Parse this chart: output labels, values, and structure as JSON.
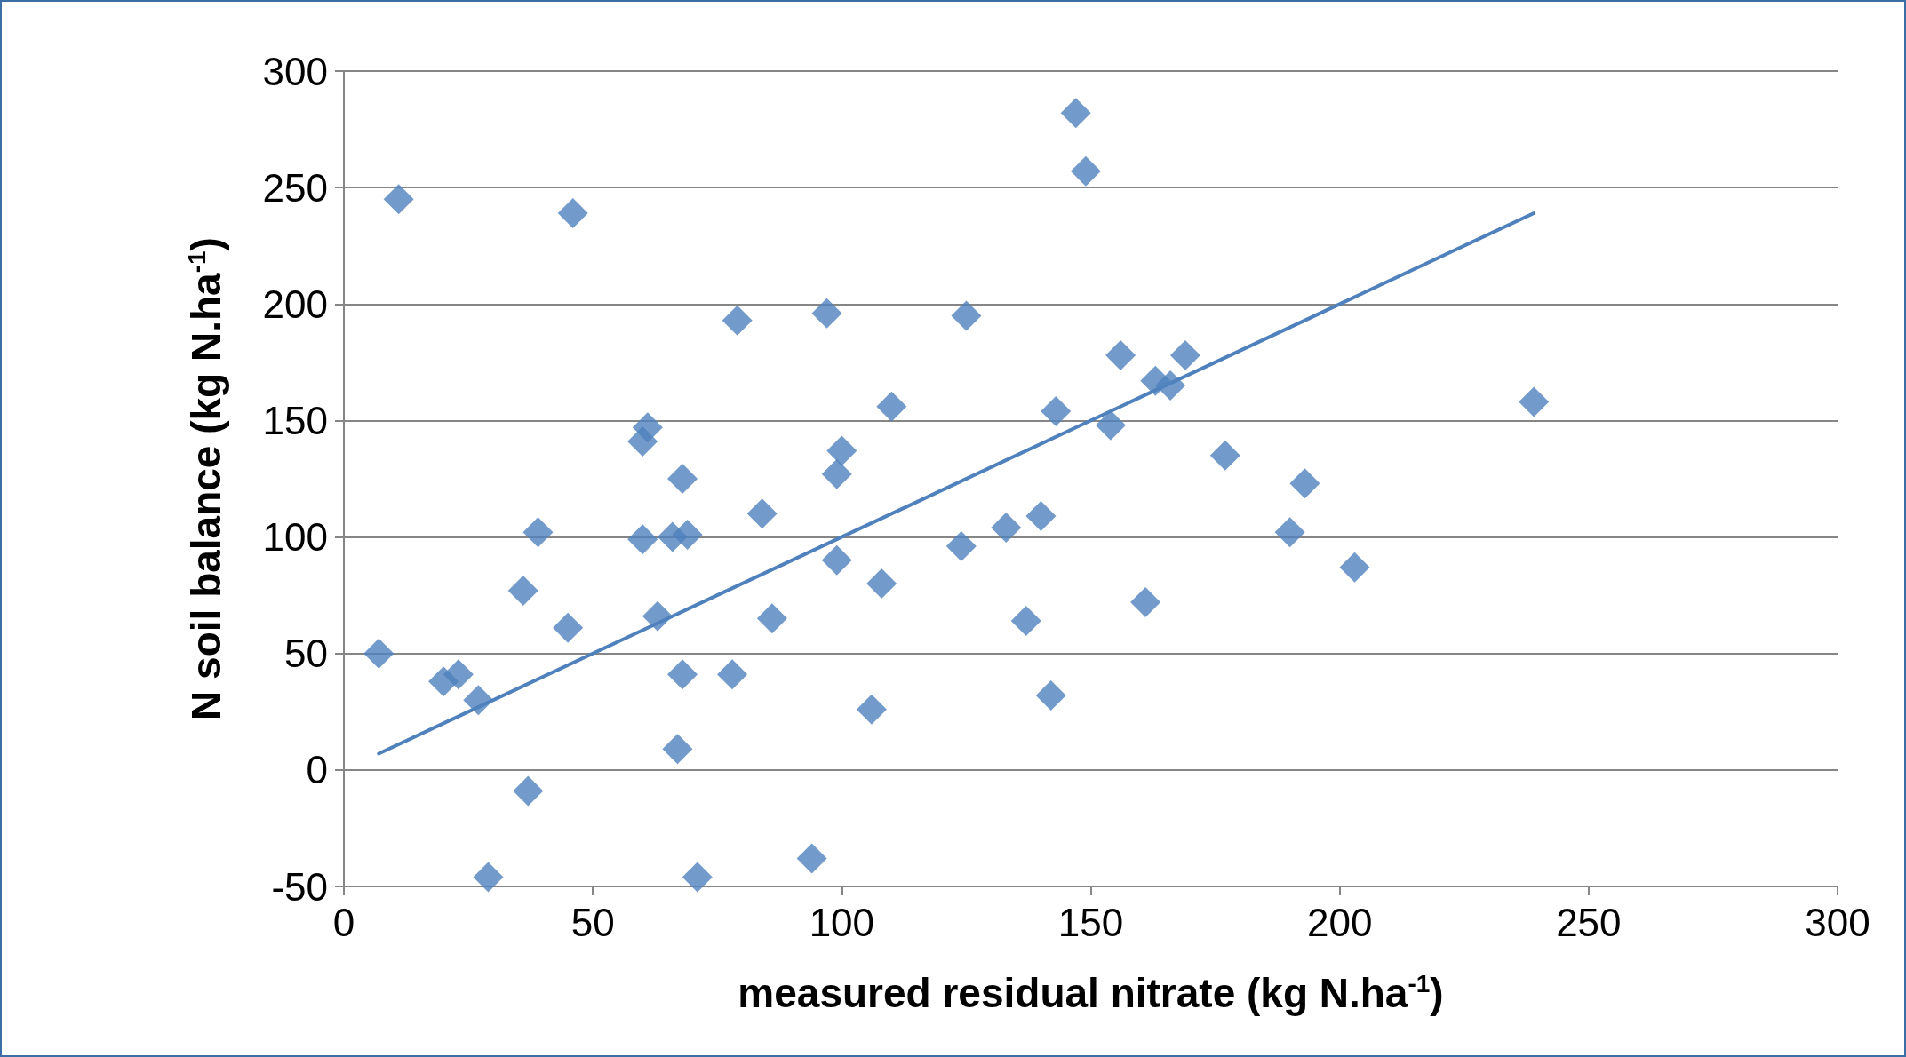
{
  "chart_data": {
    "type": "scatter",
    "xlabel": "measured residual nitrate (kg N.ha$^{-1}$)",
    "ylabel": "N soil balance (kg N.ha$^{-1}$)",
    "xlim": [
      0,
      300
    ],
    "xticks": [
      0,
      50,
      100,
      150,
      200,
      250,
      300
    ],
    "ylim": [
      -50,
      300
    ],
    "yticks": [
      -50,
      0,
      50,
      100,
      150,
      200,
      250,
      300
    ],
    "grid": "y",
    "legend": false,
    "marker": "diamond",
    "series": [
      {
        "color": "#4f81bd",
        "x": [
          7,
          11,
          20,
          23,
          27,
          29,
          36,
          37,
          39,
          45,
          46,
          60,
          61,
          60,
          63,
          66,
          67,
          68,
          69,
          68,
          71,
          78,
          79,
          84,
          86,
          94,
          97,
          99,
          100,
          99,
          106,
          108,
          110,
          124,
          125,
          133,
          137,
          140,
          142,
          143,
          147,
          149,
          154,
          156,
          161,
          163,
          166,
          169,
          177,
          190,
          193,
          203,
          239
        ],
        "values": [
          50,
          245,
          38,
          41,
          30,
          -46,
          77,
          -9,
          102,
          61,
          239,
          141,
          147,
          99,
          66,
          100,
          9,
          125,
          101,
          41,
          -46,
          41,
          193,
          110,
          65,
          -38,
          196,
          127,
          137,
          90,
          26,
          80,
          156,
          96,
          195,
          104,
          64,
          109,
          32,
          154,
          282,
          257,
          148,
          178,
          72,
          167,
          165,
          178,
          135,
          102,
          123,
          87,
          158
        ]
      },
      {
        "type": "line",
        "color": "#4f81bd",
        "marker": "none",
        "line_style": "solid",
        "x": [
          7,
          239
        ],
        "values": [
          7,
          239
        ]
      }
    ]
  }
}
